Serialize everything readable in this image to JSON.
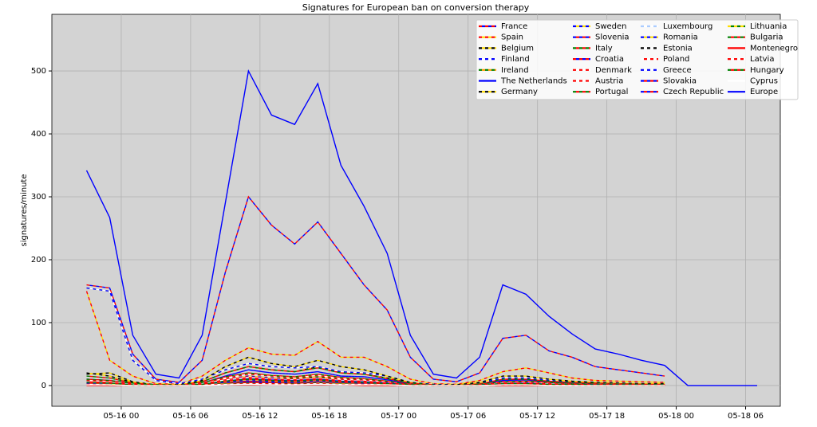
{
  "chart_data": {
    "type": "line",
    "title": "Signatures for European ban on conversion therapy",
    "ylabel": "signatures/minute",
    "x": [
      "05-15 21",
      "05-15 23",
      "05-16 01",
      "05-16 03",
      "05-16 05",
      "05-16 07",
      "05-16 09",
      "05-16 11",
      "05-16 13",
      "05-16 15",
      "05-16 17",
      "05-16 19",
      "05-16 21",
      "05-16 23",
      "05-17 01",
      "05-17 03",
      "05-17 05",
      "05-17 07",
      "05-17 09",
      "05-17 11",
      "05-17 13",
      "05-17 15",
      "05-17 17",
      "05-17 19",
      "05-17 21",
      "05-17 23",
      "05-18 01",
      "05-18 03",
      "05-18 05",
      "05-18 07"
    ],
    "xlim": [
      "05-15 18",
      "05-18 09"
    ],
    "xticks": [
      "05-16 00",
      "05-16 06",
      "05-16 12",
      "05-16 18",
      "05-17 00",
      "05-17 06",
      "05-17 12",
      "05-17 18",
      "05-18 00",
      "05-18 06"
    ],
    "ylim": [
      -33,
      590
    ],
    "yticks": [
      0,
      100,
      200,
      300,
      400,
      500
    ],
    "grid": true,
    "legend": "upper right",
    "series": [
      {
        "name": "France",
        "colors": [
          "#ff0000",
          "#0000ff"
        ],
        "values": [
          160,
          155,
          50,
          10,
          5,
          40,
          180,
          300,
          255,
          225,
          260,
          210,
          160,
          120,
          45,
          10,
          6,
          20,
          75,
          80,
          55,
          45,
          30,
          25,
          20,
          15,
          null,
          null,
          null,
          null
        ]
      },
      {
        "name": "Spain",
        "colors": [
          "#ff0000",
          "#ffdd00"
        ],
        "values": [
          150,
          40,
          15,
          3,
          2,
          15,
          40,
          60,
          50,
          48,
          70,
          45,
          45,
          30,
          10,
          3,
          2,
          8,
          22,
          28,
          20,
          12,
          8,
          7,
          6,
          5,
          null,
          null,
          null,
          null
        ]
      },
      {
        "name": "Belgium",
        "colors": [
          "#000000",
          "#ffdd00"
        ],
        "values": [
          18,
          20,
          6,
          1,
          1,
          6,
          20,
          30,
          25,
          22,
          30,
          20,
          18,
          12,
          4,
          1,
          1,
          3,
          10,
          10,
          7,
          5,
          4,
          3,
          3,
          2,
          null,
          null,
          null,
          null
        ]
      },
      {
        "name": "Finland",
        "colors": [
          "#0000ff",
          "#ffffff"
        ],
        "values": [
          155,
          150,
          40,
          8,
          3,
          10,
          25,
          35,
          30,
          28,
          30,
          22,
          20,
          15,
          5,
          2,
          1,
          4,
          12,
          12,
          8,
          6,
          5,
          4,
          3,
          3,
          null,
          null,
          null,
          null
        ]
      },
      {
        "name": "Ireland",
        "colors": [
          "#008000",
          "#ff9900"
        ],
        "values": [
          8,
          6,
          2,
          0,
          0,
          3,
          10,
          15,
          12,
          12,
          14,
          10,
          9,
          6,
          2,
          0,
          0,
          2,
          5,
          5,
          4,
          3,
          2,
          2,
          1,
          1,
          null,
          null,
          null,
          null
        ]
      },
      {
        "name": "The Netherlands",
        "colors": [
          "#0000ff",
          "#0000ff"
        ],
        "values": [
          10,
          8,
          3,
          1,
          0,
          4,
          15,
          25,
          20,
          18,
          22,
          15,
          14,
          9,
          3,
          1,
          0,
          2,
          8,
          9,
          6,
          4,
          3,
          3,
          2,
          2,
          null,
          null,
          null,
          null
        ]
      },
      {
        "name": "Germany",
        "colors": [
          "#000000",
          "#ffdd00"
        ],
        "values": [
          20,
          15,
          5,
          1,
          1,
          8,
          30,
          45,
          35,
          30,
          40,
          30,
          25,
          15,
          5,
          1,
          1,
          5,
          15,
          15,
          10,
          7,
          5,
          4,
          3,
          3,
          null,
          null,
          null,
          null
        ]
      },
      {
        "name": "Sweden",
        "colors": [
          "#0000ff",
          "#ffdd00"
        ],
        "values": [
          6,
          5,
          2,
          0,
          0,
          3,
          10,
          15,
          12,
          10,
          12,
          9,
          8,
          5,
          2,
          0,
          0,
          1,
          5,
          5,
          3,
          2,
          2,
          1,
          1,
          1,
          null,
          null,
          null,
          null
        ]
      },
      {
        "name": "Slovenia",
        "colors": [
          "#0000ff",
          "#ff0000"
        ],
        "values": [
          3,
          2,
          1,
          0,
          0,
          1,
          3,
          5,
          4,
          4,
          5,
          3,
          3,
          2,
          1,
          0,
          0,
          1,
          2,
          2,
          1,
          1,
          1,
          1,
          0,
          0,
          null,
          null,
          null,
          null
        ]
      },
      {
        "name": "Italy",
        "colors": [
          "#008000",
          "#ff0000"
        ],
        "values": [
          15,
          12,
          4,
          1,
          0,
          6,
          20,
          30,
          25,
          22,
          28,
          20,
          18,
          11,
          4,
          1,
          0,
          3,
          10,
          10,
          7,
          5,
          4,
          3,
          2,
          2,
          null,
          null,
          null,
          null
        ]
      },
      {
        "name": "Croatia",
        "colors": [
          "#ff0000",
          "#0000ff"
        ],
        "values": [
          4,
          3,
          1,
          0,
          0,
          2,
          5,
          7,
          6,
          5,
          6,
          5,
          4,
          3,
          1,
          0,
          0,
          1,
          3,
          3,
          2,
          1,
          1,
          1,
          1,
          0,
          null,
          null,
          null,
          null
        ]
      },
      {
        "name": "Denmark",
        "colors": [
          "#ff0000",
          "#ffffff"
        ],
        "values": [
          7,
          6,
          2,
          0,
          0,
          3,
          10,
          14,
          11,
          10,
          12,
          9,
          8,
          5,
          2,
          0,
          0,
          1,
          4,
          5,
          3,
          2,
          2,
          1,
          1,
          1,
          null,
          null,
          null,
          null
        ]
      },
      {
        "name": "Austria",
        "colors": [
          "#ff0000",
          "#ffffff"
        ],
        "values": [
          9,
          7,
          2,
          0,
          0,
          4,
          12,
          18,
          15,
          13,
          16,
          11,
          10,
          6,
          2,
          0,
          0,
          2,
          6,
          6,
          4,
          3,
          2,
          2,
          1,
          1,
          null,
          null,
          null,
          null
        ]
      },
      {
        "name": "Portugal",
        "colors": [
          "#008000",
          "#ff0000"
        ],
        "values": [
          10,
          8,
          3,
          1,
          0,
          4,
          14,
          20,
          16,
          14,
          18,
          13,
          11,
          7,
          2,
          0,
          0,
          2,
          6,
          7,
          5,
          3,
          2,
          2,
          2,
          1,
          null,
          null,
          null,
          null
        ]
      },
      {
        "name": "Luxembourg",
        "colors": [
          "#aaccff",
          "#ffffff"
        ],
        "values": [
          1,
          1,
          0,
          0,
          0,
          0,
          1,
          2,
          2,
          1,
          2,
          1,
          1,
          1,
          0,
          0,
          0,
          0,
          1,
          1,
          1,
          0,
          0,
          0,
          0,
          0,
          null,
          null,
          null,
          null
        ]
      },
      {
        "name": "Romania",
        "colors": [
          "#0000ff",
          "#ffdd00"
        ],
        "values": [
          4,
          3,
          1,
          0,
          0,
          2,
          6,
          9,
          7,
          6,
          8,
          6,
          5,
          3,
          1,
          0,
          0,
          1,
          3,
          3,
          2,
          1,
          1,
          1,
          1,
          0,
          null,
          null,
          null,
          null
        ]
      },
      {
        "name": "Estonia",
        "colors": [
          "#000000",
          "#ffffff"
        ],
        "values": [
          2,
          1,
          0,
          0,
          0,
          1,
          2,
          3,
          2,
          2,
          3,
          2,
          2,
          1,
          0,
          0,
          0,
          0,
          1,
          1,
          1,
          0,
          0,
          0,
          0,
          0,
          null,
          null,
          null,
          null
        ]
      },
      {
        "name": "Poland",
        "colors": [
          "#ffffff",
          "#ff0000"
        ],
        "values": [
          6,
          5,
          2,
          0,
          0,
          3,
          9,
          13,
          10,
          9,
          11,
          8,
          7,
          4,
          1,
          0,
          0,
          1,
          4,
          4,
          3,
          2,
          1,
          1,
          1,
          1,
          null,
          null,
          null,
          null
        ]
      },
      {
        "name": "Greece",
        "colors": [
          "#0000ff",
          "#ffffff"
        ],
        "values": [
          5,
          4,
          1,
          0,
          0,
          2,
          7,
          10,
          8,
          7,
          9,
          6,
          5,
          3,
          1,
          0,
          0,
          1,
          3,
          3,
          2,
          2,
          1,
          1,
          1,
          1,
          null,
          null,
          null,
          null
        ]
      },
      {
        "name": "Slovakia",
        "colors": [
          "#0000ff",
          "#ff0000"
        ],
        "values": [
          3,
          2,
          1,
          0,
          0,
          1,
          4,
          6,
          5,
          4,
          5,
          4,
          3,
          2,
          1,
          0,
          0,
          1,
          2,
          2,
          1,
          1,
          1,
          1,
          0,
          0,
          null,
          null,
          null,
          null
        ]
      },
      {
        "name": "Czech Republic",
        "colors": [
          "#0000ff",
          "#ff0000"
        ],
        "values": [
          5,
          4,
          1,
          0,
          0,
          2,
          7,
          11,
          9,
          8,
          10,
          7,
          6,
          4,
          1,
          0,
          0,
          1,
          3,
          4,
          2,
          2,
          1,
          1,
          1,
          1,
          null,
          null,
          null,
          null
        ]
      },
      {
        "name": "Lithuania",
        "colors": [
          "#ffdd00",
          "#008000"
        ],
        "values": [
          2,
          2,
          1,
          0,
          0,
          1,
          3,
          4,
          3,
          3,
          4,
          3,
          2,
          2,
          1,
          0,
          0,
          0,
          1,
          2,
          1,
          1,
          0,
          0,
          0,
          0,
          null,
          null,
          null,
          null
        ]
      },
      {
        "name": "Bulgaria",
        "colors": [
          "#008000",
          "#ff0000"
        ],
        "values": [
          2,
          1,
          0,
          0,
          0,
          1,
          2,
          4,
          3,
          3,
          3,
          2,
          2,
          1,
          0,
          0,
          0,
          0,
          1,
          1,
          1,
          1,
          0,
          0,
          0,
          0,
          null,
          null,
          null,
          null
        ]
      },
      {
        "name": "Montenegro",
        "colors": [
          "#ff0000"
        ],
        "values": [
          0,
          0,
          0,
          0,
          0,
          0,
          1,
          1,
          1,
          1,
          1,
          1,
          0,
          0,
          0,
          0,
          0,
          0,
          0,
          0,
          0,
          0,
          0,
          0,
          0,
          0,
          null,
          null,
          null,
          null
        ]
      },
      {
        "name": "Latvia",
        "colors": [
          "#ff0000",
          "#ffffff"
        ],
        "values": [
          2,
          1,
          0,
          0,
          0,
          1,
          2,
          3,
          3,
          2,
          3,
          2,
          2,
          1,
          0,
          0,
          0,
          0,
          1,
          1,
          1,
          0,
          0,
          0,
          0,
          0,
          null,
          null,
          null,
          null
        ]
      },
      {
        "name": "Hungary",
        "colors": [
          "#008000",
          "#ff0000"
        ],
        "values": [
          5,
          4,
          1,
          0,
          0,
          2,
          7,
          10,
          8,
          7,
          9,
          6,
          5,
          3,
          1,
          0,
          0,
          1,
          3,
          3,
          2,
          2,
          1,
          1,
          1,
          1,
          null,
          null,
          null,
          null
        ]
      },
      {
        "name": "Cyprus",
        "colors": [
          "#ffffff"
        ],
        "values": [
          1,
          1,
          0,
          0,
          0,
          0,
          1,
          2,
          1,
          1,
          2,
          1,
          1,
          1,
          0,
          0,
          0,
          0,
          1,
          1,
          0,
          0,
          0,
          0,
          0,
          0,
          null,
          null,
          null,
          null
        ]
      },
      {
        "name": "Europe",
        "colors": [
          "#0000ff"
        ],
        "values": [
          342,
          267,
          80,
          18,
          12,
          80,
          290,
          500,
          430,
          415,
          480,
          350,
          285,
          210,
          80,
          18,
          12,
          45,
          160,
          145,
          110,
          82,
          58,
          50,
          40,
          32,
          0,
          0,
          0,
          0
        ]
      }
    ]
  }
}
